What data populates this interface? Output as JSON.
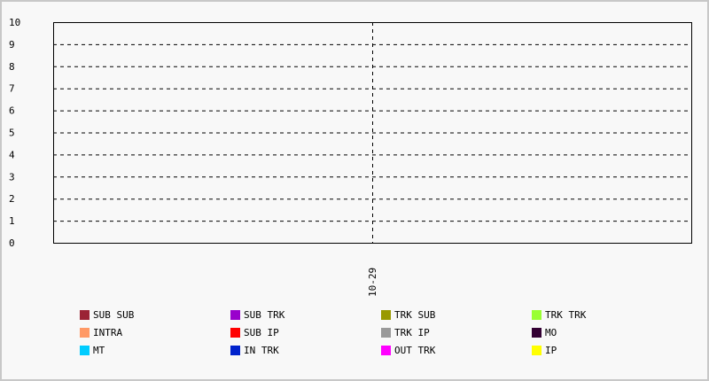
{
  "chart_data": {
    "type": "bar",
    "categories": [
      "10-29"
    ],
    "ylim": [
      0,
      10
    ],
    "yticks": [
      "0",
      "1",
      "2",
      "3",
      "4",
      "5",
      "6",
      "7",
      "8",
      "9",
      "10"
    ],
    "grid": true,
    "legend_placement": "bottom",
    "series": [
      {
        "name": "SUB SUB",
        "color": "#9b2335",
        "values": [
          0
        ]
      },
      {
        "name": "SUB TRK",
        "color": "#9900cc",
        "values": [
          0
        ]
      },
      {
        "name": "TRK SUB",
        "color": "#999900",
        "values": [
          0
        ]
      },
      {
        "name": "TRK TRK",
        "color": "#99ff33",
        "values": [
          0
        ]
      },
      {
        "name": "INTRA",
        "color": "#ff9966",
        "values": [
          0
        ]
      },
      {
        "name": "SUB IP",
        "color": "#ff0000",
        "values": [
          0
        ]
      },
      {
        "name": "TRK IP",
        "color": "#999999",
        "values": [
          0
        ]
      },
      {
        "name": "MO",
        "color": "#330033",
        "values": [
          0
        ]
      },
      {
        "name": "MT",
        "color": "#00ccff",
        "values": [
          0
        ]
      },
      {
        "name": "IN TRK",
        "color": "#0022cc",
        "values": [
          0
        ]
      },
      {
        "name": "OUT TRK",
        "color": "#ff00ff",
        "values": [
          0
        ]
      },
      {
        "name": "IP",
        "color": "#ffff00",
        "values": [
          0
        ]
      }
    ]
  }
}
